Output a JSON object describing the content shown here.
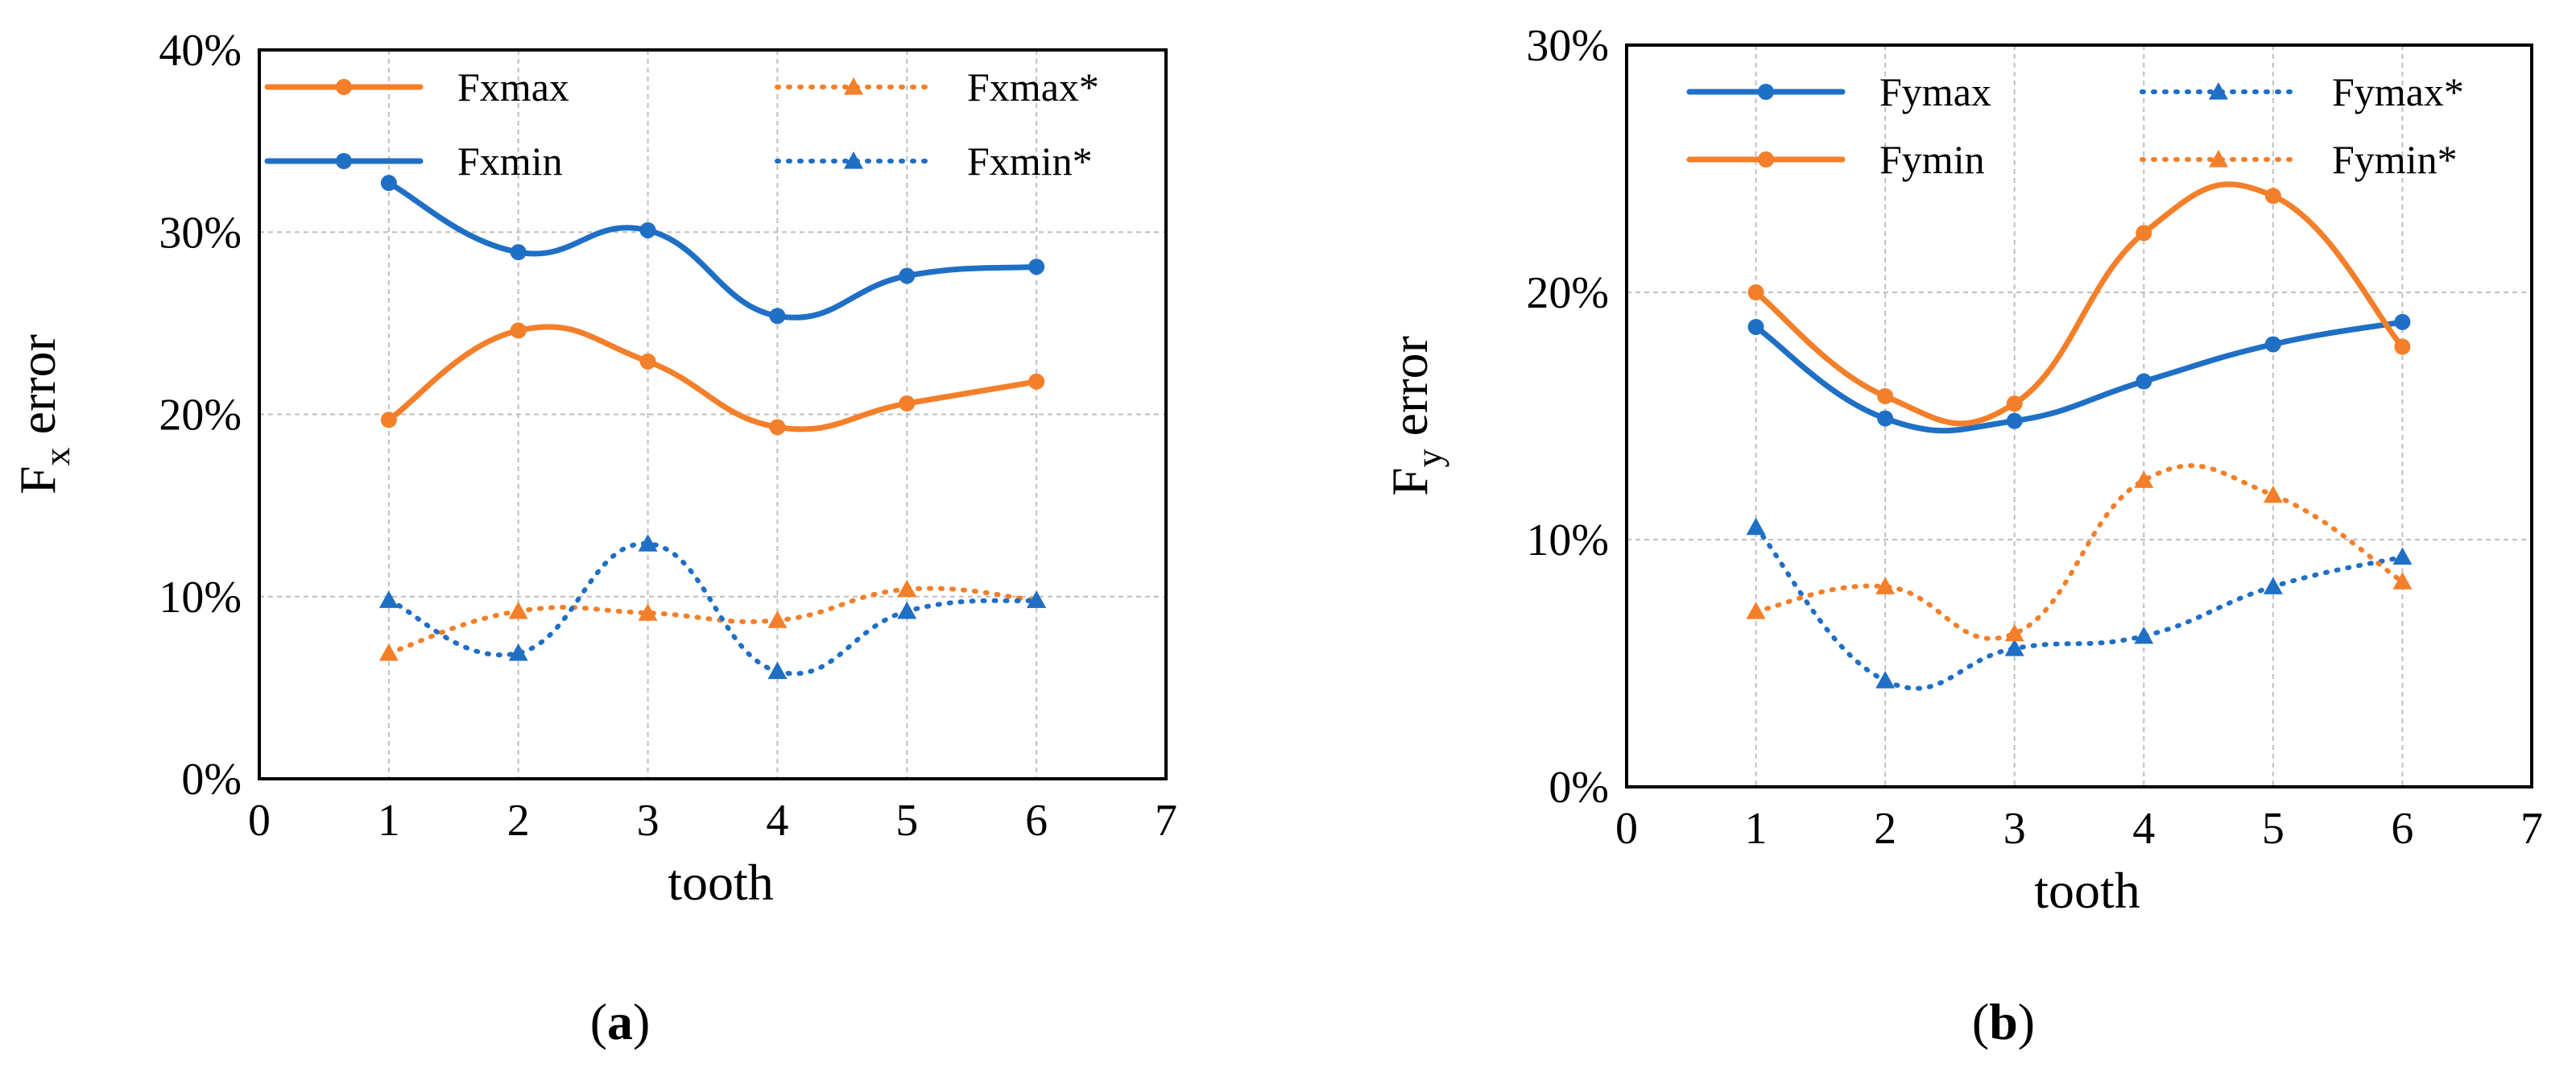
{
  "colors": {
    "blue": "#1f6fc5",
    "orange": "#f47f2a"
  },
  "chart_data": [
    {
      "type": "line",
      "caption_letter": "a",
      "xlabel": "tooth",
      "ylabel_main": "F",
      "ylabel_sub": "x",
      "ylabel_rest": " error",
      "xlim": [
        0,
        7
      ],
      "ylim": [
        0,
        0.4
      ],
      "x_ticks": [
        "0",
        "1",
        "2",
        "3",
        "4",
        "5",
        "6",
        "7"
      ],
      "y_ticks": [
        "0%",
        "10%",
        "20%",
        "30%",
        "40%"
      ],
      "x": [
        1,
        2,
        3,
        4,
        5,
        6
      ],
      "series": [
        {
          "name": "Fxmax",
          "color": "orange",
          "style": "solid",
          "marker": "circle",
          "values": [
            0.197,
            0.246,
            0.229,
            0.193,
            0.206,
            0.218
          ]
        },
        {
          "name": "Fxmin",
          "color": "blue",
          "style": "solid",
          "marker": "circle",
          "values": [
            0.327,
            0.289,
            0.301,
            0.254,
            0.276,
            0.281
          ]
        },
        {
          "name": "Fxmax*",
          "color": "orange",
          "style": "dotted",
          "marker": "triangle",
          "values": [
            0.069,
            0.092,
            0.091,
            0.087,
            0.104,
            0.098
          ]
        },
        {
          "name": "Fxmin*",
          "color": "blue",
          "style": "dotted",
          "marker": "triangle",
          "values": [
            0.098,
            0.069,
            0.129,
            0.059,
            0.092,
            0.098
          ]
        }
      ]
    },
    {
      "type": "line",
      "caption_letter": "b",
      "xlabel": "tooth",
      "ylabel_main": "F",
      "ylabel_sub": "y",
      "ylabel_rest": " error",
      "xlim": [
        0,
        7
      ],
      "ylim": [
        0,
        0.3
      ],
      "x_ticks": [
        "0",
        "1",
        "2",
        "3",
        "4",
        "5",
        "6",
        "7"
      ],
      "y_ticks": [
        "0%",
        "10%",
        "20%",
        "30%"
      ],
      "x": [
        1,
        2,
        3,
        4,
        5,
        6
      ],
      "series": [
        {
          "name": "Fymax",
          "color": "blue",
          "style": "solid",
          "marker": "circle",
          "values": [
            0.186,
            0.149,
            0.148,
            0.164,
            0.179,
            0.188
          ]
        },
        {
          "name": "Fymin",
          "color": "orange",
          "style": "solid",
          "marker": "circle",
          "values": [
            0.2,
            0.158,
            0.155,
            0.224,
            0.239,
            0.178
          ]
        },
        {
          "name": "Fymax*",
          "color": "blue",
          "style": "dotted",
          "marker": "triangle",
          "values": [
            0.105,
            0.043,
            0.056,
            0.061,
            0.081,
            0.093
          ]
        },
        {
          "name": "Fymin*",
          "color": "orange",
          "style": "dotted",
          "marker": "triangle",
          "values": [
            0.071,
            0.081,
            0.062,
            0.124,
            0.118,
            0.083
          ]
        }
      ]
    }
  ]
}
